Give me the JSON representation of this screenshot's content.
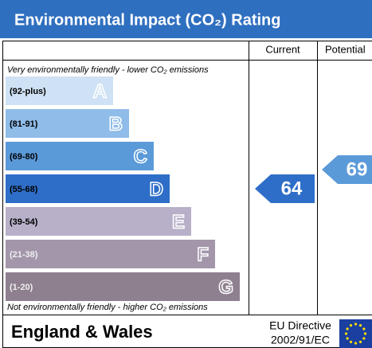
{
  "header": {
    "title": "Environmental Impact (CO₂) Rating"
  },
  "columns": [
    "Current",
    "Potential"
  ],
  "top_note": "Very environmentally friendly - lower CO₂ emissions",
  "bottom_note": "Not environmentally friendly - higher CO₂ emissions",
  "bands": [
    {
      "range": "(92-plus)",
      "letter": "A"
    },
    {
      "range": "(81-91)",
      "letter": "B"
    },
    {
      "range": "(69-80)",
      "letter": "C"
    },
    {
      "range": "(55-68)",
      "letter": "D"
    },
    {
      "range": "(39-54)",
      "letter": "E"
    },
    {
      "range": "(21-38)",
      "letter": "F"
    },
    {
      "range": "(1-20)",
      "letter": "G"
    }
  ],
  "current": 64,
  "potential": 69,
  "footer": {
    "region": "England & Wales",
    "directive": "EU Directive",
    "directive_number": "2002/91/EC"
  }
}
